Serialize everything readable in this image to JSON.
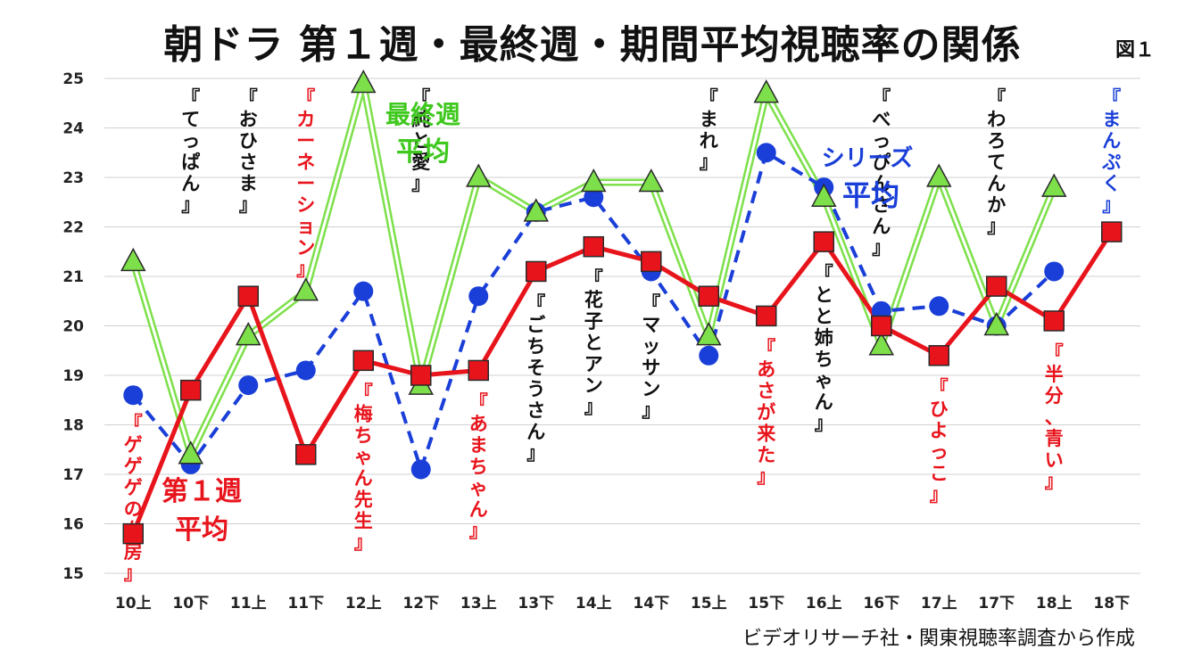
{
  "title": "朝ドラ 第１週・最終週・期間平均視聴率の関係",
  "figure_label": "図１",
  "source": "ビデオリサーチ社・関東視聴率調査から作成",
  "colors": {
    "first_week": "#e8141c",
    "final_week": "#7de04a",
    "series_avg": "#1a3fd8",
    "red_title": "#e8141c",
    "black_title": "#111111",
    "blue_title": "#1a3fd8"
  },
  "annotations": {
    "first_week": [
      "第１週",
      "平均"
    ],
    "final_week": [
      "最終週",
      "平均"
    ],
    "series_avg": [
      "シリーズ",
      "平均"
    ]
  },
  "chart_data": {
    "type": "line",
    "title": "朝ドラ 第１週・最終週・期間平均視聴率の関係",
    "categories": [
      "10上",
      "10下",
      "11上",
      "11下",
      "12上",
      "12下",
      "13上",
      "13下",
      "14上",
      "14下",
      "15上",
      "15下",
      "16上",
      "16下",
      "17上",
      "17下",
      "18上",
      "18下"
    ],
    "ylim": [
      15,
      25
    ],
    "yticks": [
      15,
      16,
      17,
      18,
      19,
      20,
      21,
      22,
      23,
      24,
      25
    ],
    "grid": true,
    "series": [
      {
        "name": "第１週平均",
        "marker": "square",
        "style": "solid",
        "values": [
          15.8,
          18.7,
          20.6,
          17.4,
          19.3,
          19.0,
          19.1,
          21.1,
          21.6,
          21.3,
          20.6,
          20.2,
          21.7,
          20.0,
          19.4,
          20.8,
          20.1,
          21.9
        ]
      },
      {
        "name": "最終週平均",
        "marker": "triangle",
        "style": "double",
        "values": [
          21.3,
          17.4,
          19.8,
          20.7,
          24.9,
          18.8,
          23.0,
          22.3,
          22.9,
          22.9,
          19.8,
          24.7,
          22.6,
          19.6,
          23.0,
          20.0,
          22.8,
          null
        ]
      },
      {
        "name": "シリーズ平均",
        "marker": "circle",
        "style": "dashed",
        "values": [
          18.6,
          17.2,
          18.8,
          19.1,
          20.7,
          17.1,
          20.6,
          22.3,
          22.6,
          21.1,
          19.4,
          23.5,
          22.8,
          20.3,
          20.4,
          20.0,
          21.1,
          null
        ]
      }
    ],
    "titles": [
      {
        "text": "『ゲゲゲの女房』",
        "color": "red"
      },
      {
        "text": "『てっぱん』",
        "color": "black"
      },
      {
        "text": "『おひさま』",
        "color": "black"
      },
      {
        "text": "『カーネーション』",
        "color": "red"
      },
      {
        "text": "『梅ちゃん先生』",
        "color": "red"
      },
      {
        "text": "『純と愛』",
        "color": "black"
      },
      {
        "text": "『あまちゃん』",
        "color": "red"
      },
      {
        "text": "『ごちそうさん』",
        "color": "black"
      },
      {
        "text": "『花子とアン』",
        "color": "black"
      },
      {
        "text": "『マッサン』",
        "color": "black"
      },
      {
        "text": "『まれ』",
        "color": "black"
      },
      {
        "text": "『あさが来た』",
        "color": "red"
      },
      {
        "text": "『とと姉ちゃん』",
        "color": "black"
      },
      {
        "text": "『べっぴんさん』",
        "color": "black"
      },
      {
        "text": "『ひよっこ』",
        "color": "red"
      },
      {
        "text": "『わろてんか』",
        "color": "black"
      },
      {
        "text": "『半分、青い』",
        "color": "red"
      },
      {
        "text": "『まんぷく』",
        "color": "blue"
      }
    ]
  }
}
